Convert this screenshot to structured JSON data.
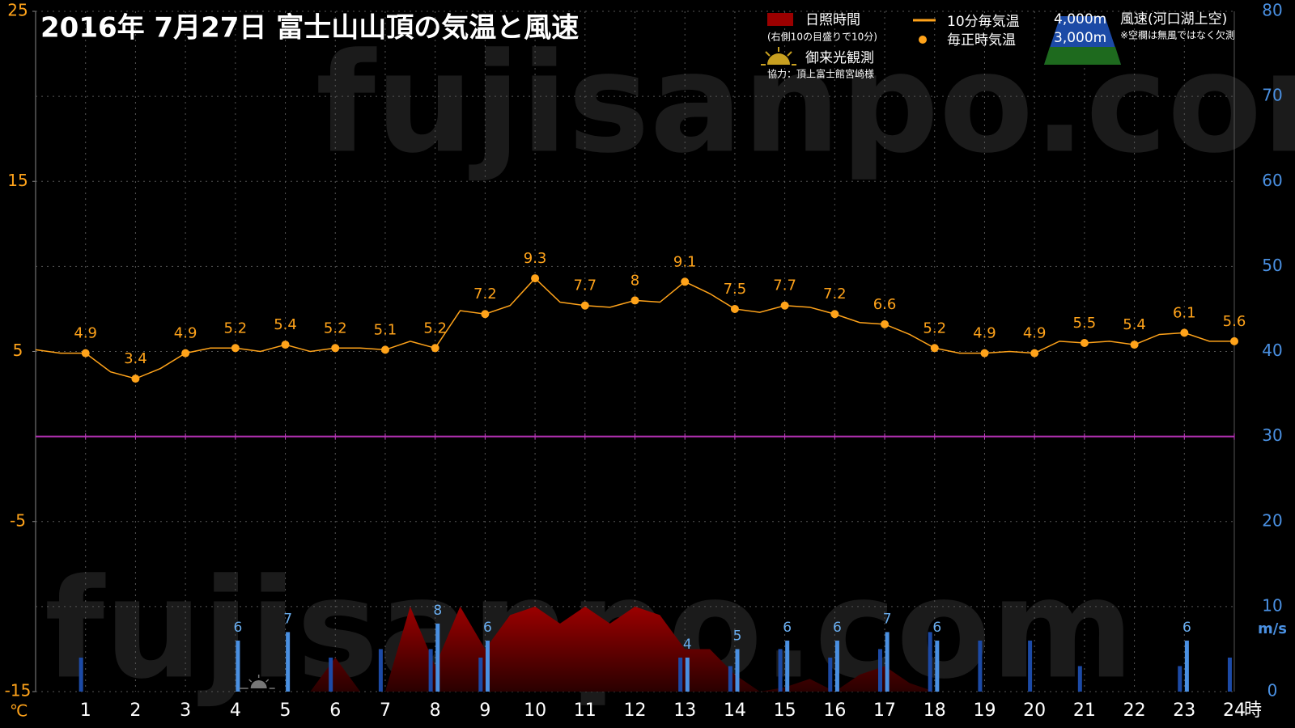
{
  "chart_data": {
    "type": "line",
    "title": "2016年  7月27日   富士山山頂の気温と風速",
    "watermark": "fujisanpo.com",
    "x": [
      0,
      0.5,
      1,
      1.5,
      2,
      2.5,
      3,
      3.5,
      4,
      4.5,
      5,
      5.5,
      6,
      6.5,
      7,
      7.5,
      8,
      8.5,
      9,
      9.5,
      10,
      10.5,
      11,
      11.5,
      12,
      12.5,
      13,
      13.5,
      14,
      14.5,
      15,
      15.5,
      16,
      16.5,
      17,
      17.5,
      18,
      18.5,
      19,
      19.5,
      20,
      20.5,
      21,
      21.5,
      22,
      22.5,
      23,
      23.5,
      24
    ],
    "series": [
      {
        "name": "10分毎気温",
        "color": "#ffa31a",
        "values": [
          5.1,
          4.9,
          4.9,
          3.8,
          3.4,
          4.0,
          4.9,
          5.2,
          5.2,
          5.0,
          5.4,
          5.0,
          5.2,
          5.2,
          5.1,
          5.6,
          5.2,
          7.4,
          7.2,
          7.7,
          9.3,
          7.9,
          7.7,
          7.6,
          8,
          7.9,
          9.1,
          8.4,
          7.5,
          7.3,
          7.7,
          7.6,
          7.2,
          6.7,
          6.6,
          6.0,
          5.2,
          4.9,
          4.9,
          5.0,
          4.9,
          5.6,
          5.5,
          5.6,
          5.4,
          6.0,
          6.1,
          5.6,
          5.6
        ]
      }
    ],
    "hours": [
      1,
      2,
      3,
      4,
      5,
      6,
      7,
      8,
      9,
      10,
      11,
      12,
      13,
      14,
      15,
      16,
      17,
      18,
      19,
      20,
      21,
      22,
      23,
      24
    ],
    "hourly": {
      "name": "毎正時気温",
      "color": "#ffa31a",
      "values": [
        4.9,
        3.4,
        4.9,
        5.2,
        5.4,
        5.2,
        5.1,
        5.2,
        7.2,
        9.3,
        7.7,
        8,
        9.1,
        7.5,
        7.7,
        7.2,
        6.6,
        5.2,
        4.9,
        4.9,
        5.5,
        5.4,
        6.1,
        5.6
      ]
    },
    "sunshine": {
      "name": "日照時間",
      "note": "(右側10の目盛りで10分)",
      "color": "#9b0000",
      "values": [
        0,
        0,
        0,
        0,
        0,
        0,
        0,
        0,
        0,
        0,
        0,
        0,
        4,
        0,
        0,
        10,
        3,
        10,
        5,
        9,
        10,
        8,
        10,
        8,
        10,
        9,
        5,
        5,
        2,
        0,
        0.5,
        1.5,
        0,
        2,
        3,
        1,
        0,
        0,
        0,
        0,
        0,
        0,
        0,
        0,
        0,
        0,
        0,
        0,
        0
      ]
    },
    "wind_label": "風速(河口湖上空)",
    "wind_note": "※空欄は無風ではなく欠測",
    "wind": [
      {
        "name": "4,000m",
        "color": "#4a90e2",
        "axis": "y2",
        "values": [
          null,
          null,
          null,
          6,
          7,
          null,
          null,
          8,
          6,
          null,
          null,
          null,
          4,
          5,
          6,
          6,
          7,
          6,
          null,
          null,
          null,
          null,
          6,
          null
        ]
      },
      {
        "name": "3,000m",
        "color": "#1c4aa6",
        "axis": "y2",
        "values": [
          4,
          null,
          null,
          null,
          null,
          4,
          5,
          5,
          4,
          null,
          null,
          null,
          4,
          3,
          5,
          4,
          5,
          7,
          6,
          6,
          3,
          null,
          3,
          4
        ]
      }
    ],
    "sunrise": {
      "name": "御来光観測",
      "x": 4.5
    },
    "credit": "協力：頂上富士館宮崎様",
    "zero_line": 0,
    "xlim": [
      0,
      24
    ],
    "xticks": [
      1,
      2,
      3,
      4,
      5,
      6,
      7,
      8,
      9,
      10,
      11,
      12,
      13,
      14,
      15,
      16,
      17,
      18,
      19,
      20,
      21,
      22,
      23,
      24
    ],
    "x_unit": "時",
    "ylim": [
      -15,
      25
    ],
    "yticks": [
      -15,
      -5,
      5,
      15,
      25
    ],
    "y_unit": "℃",
    "y2lim": [
      0,
      80
    ],
    "y2ticks": [
      0,
      10,
      20,
      30,
      40,
      50,
      60,
      70,
      80
    ],
    "y2_unit": "m/s",
    "grid": true
  }
}
